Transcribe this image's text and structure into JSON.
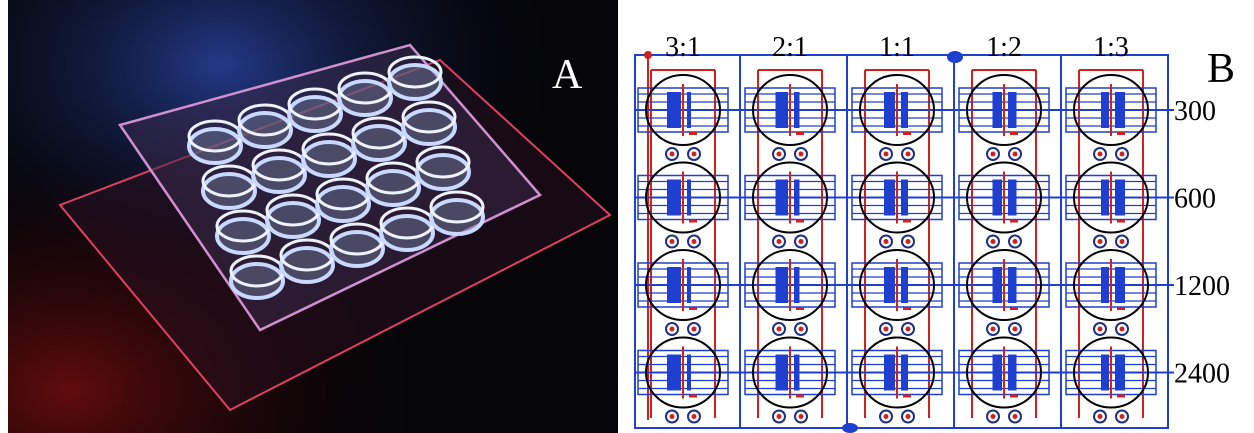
{
  "panels": [
    {
      "label": "A"
    },
    {
      "label": "B",
      "column_labels": [
        "3:1",
        "2:1",
        "1:1",
        "1:2",
        "1:3"
      ],
      "row_labels": [
        "300",
        "600",
        "1200",
        "2400"
      ]
    }
  ]
}
